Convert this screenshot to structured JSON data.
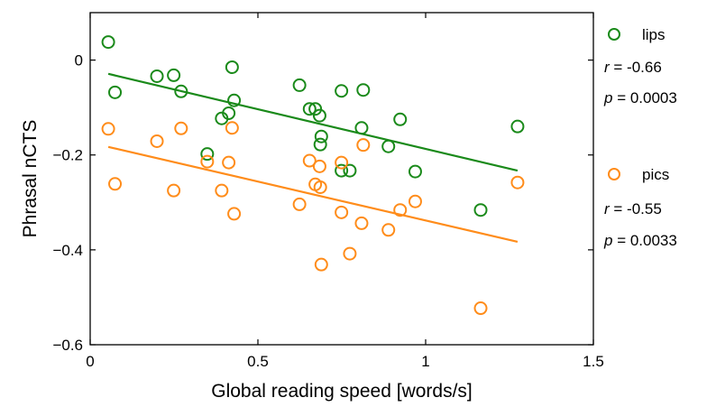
{
  "chart_data": {
    "type": "scatter",
    "title": "",
    "xlabel": "Global reading speed [words/s]",
    "ylabel": "Phrasal nCTS",
    "xlim": [
      0,
      1.5
    ],
    "ylim": [
      -0.6,
      0.1
    ],
    "xticks": [
      0,
      0.5,
      1,
      1.5
    ],
    "xtick_labels": [
      "0",
      "0.5",
      "1",
      "1.5"
    ],
    "yticks": [
      0,
      -0.2,
      -0.4,
      -0.6
    ],
    "ytick_labels": [
      "0",
      "−0.2",
      "−0.4",
      "−0.6"
    ],
    "grid": false,
    "legend_position": "right, outside plot",
    "series": [
      {
        "name": "lips",
        "color": "#1a8a1a",
        "marker": "open-circle",
        "points": [
          [
            0.054,
            0.038
          ],
          [
            0.074,
            -0.068
          ],
          [
            0.199,
            -0.034
          ],
          [
            0.249,
            -0.032
          ],
          [
            0.271,
            -0.066
          ],
          [
            0.349,
            -0.198
          ],
          [
            0.392,
            -0.123
          ],
          [
            0.413,
            -0.112
          ],
          [
            0.423,
            -0.015
          ],
          [
            0.429,
            -0.085
          ],
          [
            0.624,
            -0.053
          ],
          [
            0.654,
            -0.103
          ],
          [
            0.671,
            -0.103
          ],
          [
            0.684,
            -0.117
          ],
          [
            0.686,
            -0.178
          ],
          [
            0.689,
            -0.161
          ],
          [
            0.749,
            -0.065
          ],
          [
            0.749,
            -0.233
          ],
          [
            0.774,
            -0.233
          ],
          [
            0.809,
            -0.143
          ],
          [
            0.814,
            -0.063
          ],
          [
            0.889,
            -0.182
          ],
          [
            0.924,
            -0.125
          ],
          [
            0.969,
            -0.235
          ],
          [
            1.164,
            -0.316
          ],
          [
            1.274,
            -0.14
          ]
        ],
        "fit": {
          "x": [
            0.054,
            1.274
          ],
          "y": [
            -0.029,
            -0.233
          ]
        },
        "stats": {
          "r_label": "r",
          "r_value": " = -0.66",
          "p_label": "p",
          "p_value": " = 0.0003"
        }
      },
      {
        "name": "pics",
        "color": "#ff8c1a",
        "marker": "open-circle",
        "points": [
          [
            0.054,
            -0.145
          ],
          [
            0.074,
            -0.261
          ],
          [
            0.199,
            -0.171
          ],
          [
            0.249,
            -0.275
          ],
          [
            0.271,
            -0.144
          ],
          [
            0.349,
            -0.214
          ],
          [
            0.392,
            -0.275
          ],
          [
            0.413,
            -0.216
          ],
          [
            0.423,
            -0.143
          ],
          [
            0.429,
            -0.324
          ],
          [
            0.624,
            -0.304
          ],
          [
            0.654,
            -0.212
          ],
          [
            0.671,
            -0.262
          ],
          [
            0.684,
            -0.224
          ],
          [
            0.686,
            -0.268
          ],
          [
            0.689,
            -0.431
          ],
          [
            0.749,
            -0.321
          ],
          [
            0.749,
            -0.216
          ],
          [
            0.774,
            -0.408
          ],
          [
            0.809,
            -0.344
          ],
          [
            0.814,
            -0.179
          ],
          [
            0.889,
            -0.358
          ],
          [
            0.924,
            -0.316
          ],
          [
            0.969,
            -0.298
          ],
          [
            1.164,
            -0.523
          ],
          [
            1.274,
            -0.258
          ]
        ],
        "fit": {
          "x": [
            0.054,
            1.274
          ],
          "y": [
            -0.183,
            -0.383
          ]
        },
        "stats": {
          "r_label": "r",
          "r_value": " = -0.55",
          "p_label": "p",
          "p_value": " = 0.0033"
        }
      }
    ]
  }
}
